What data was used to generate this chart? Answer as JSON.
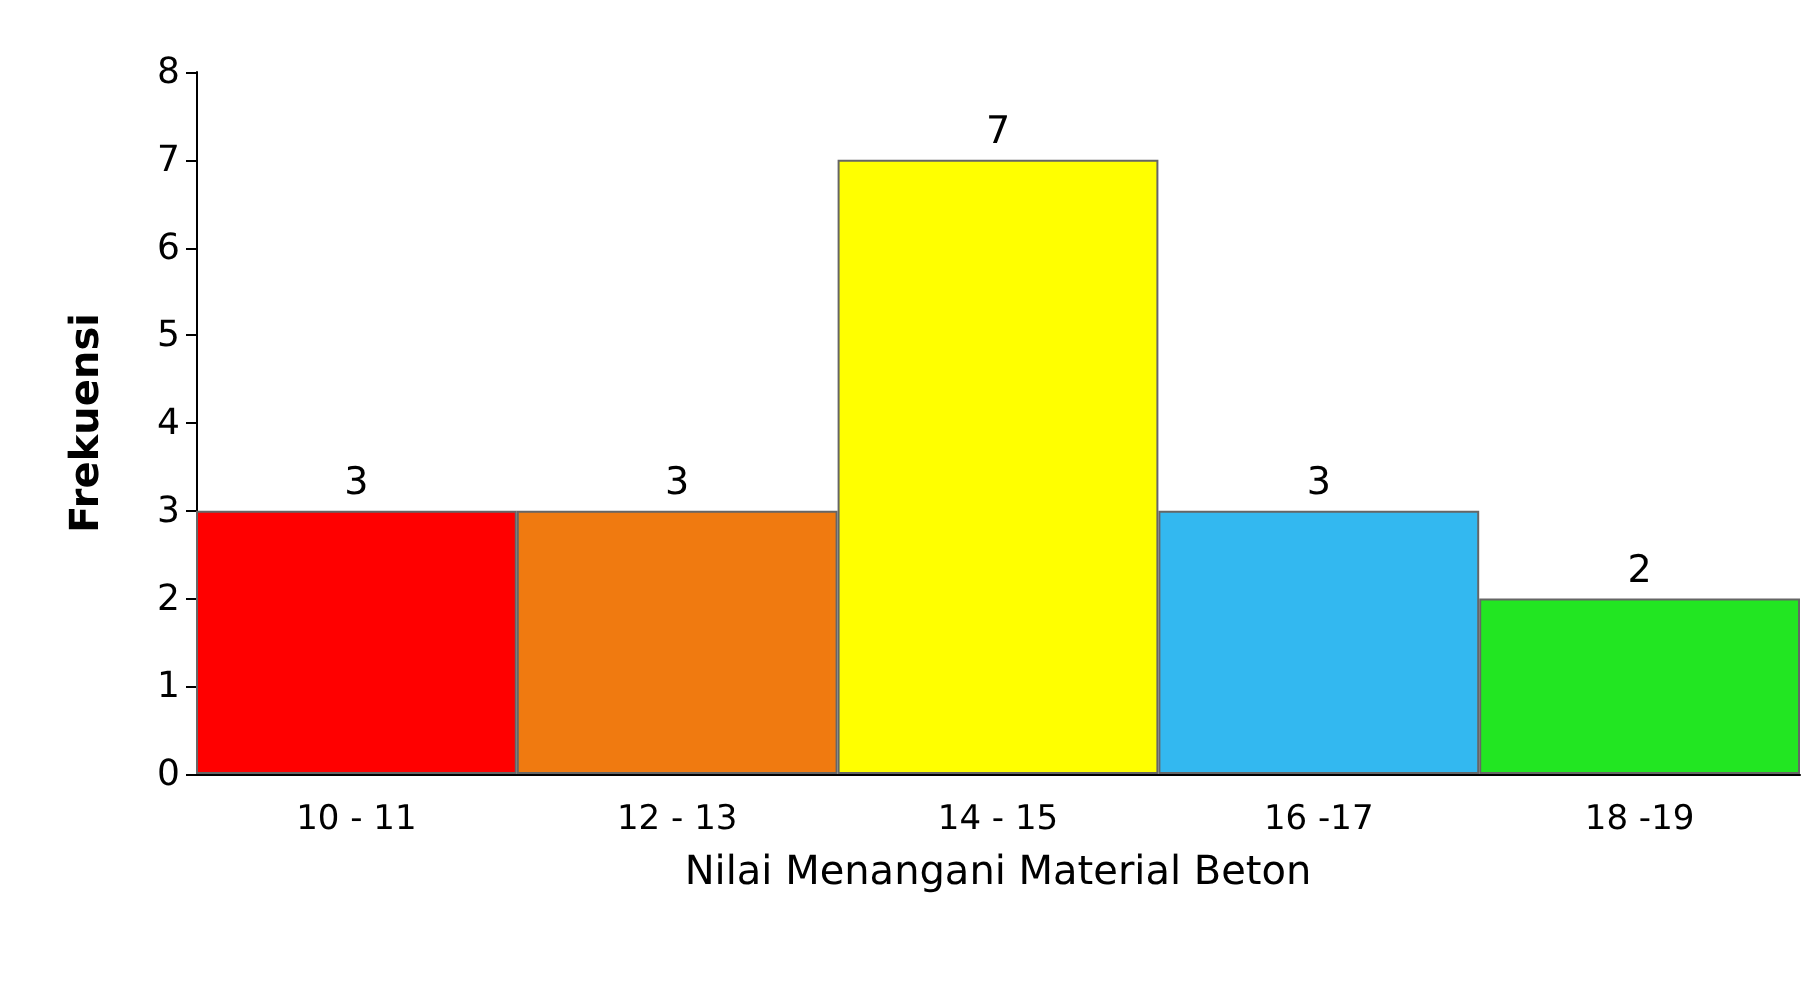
{
  "chart_data": {
    "type": "bar",
    "xlabel": "Nilai Menangani Material Beton",
    "ylabel": "Frekuensi",
    "categories": [
      "10 - 11",
      "12 - 13",
      "14 - 15",
      "16 -17",
      "18 -19"
    ],
    "values": [
      3,
      3,
      7,
      3,
      2
    ],
    "colors": [
      "#ff0000",
      "#f07a10",
      "#ffff00",
      "#33b8f0",
      "#22e622"
    ],
    "ylim": [
      0,
      8
    ],
    "yticks": [
      0,
      1,
      2,
      3,
      4,
      5,
      6,
      7,
      8
    ],
    "grid": false,
    "data_labels": true
  }
}
